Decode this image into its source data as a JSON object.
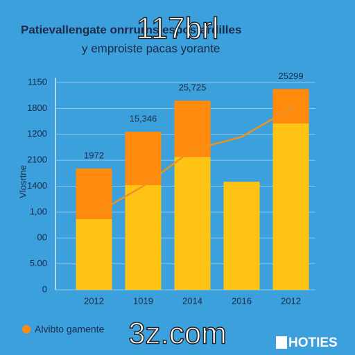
{
  "chart_data": {
    "type": "bar",
    "stacked": true,
    "title": "Patievallengate onrrurns espostardilles",
    "subtitle": "y emproiste pacas yorante",
    "y_label": "Vlosrtne",
    "categories": [
      "2012",
      "1019",
      "2014",
      "2016",
      "2012"
    ],
    "series": [
      {
        "color": "#ffc413",
        "values": [
          2.73,
          4.04,
          5.13,
          4.17,
          6.42
        ]
      },
      {
        "name": "Alvibto gamente",
        "color": "#ff8a0c",
        "values": [
          1.95,
          2.06,
          2.17,
          0,
          1.33
        ]
      },
      {
        "type": "line",
        "color": "#f0921e",
        "values": [
          2.9,
          4.0,
          5.4,
          5.9,
          7.0
        ]
      }
    ],
    "annotations": [
      "1972",
      "15,346",
      "25,725",
      "25299"
    ],
    "ylim": [
      0,
      8
    ],
    "yticks": [
      0,
      {
        "value": 1,
        "label": "5.00"
      },
      {
        "value": 2,
        "label": "00"
      },
      {
        "value": 3,
        "label": "1,00"
      },
      {
        "value": 4,
        "label": "1400"
      },
      {
        "value": 5,
        "label": "2100"
      },
      {
        "value": 6,
        "label": "1200"
      },
      {
        "value": 7,
        "label": "1800"
      },
      {
        "value": 8,
        "label": "1150"
      }
    ],
    "grid": true,
    "legend_position": "bottom-left",
    "watermarks": [
      "117brl",
      "3z.com"
    ],
    "logo": "HOTIES"
  }
}
